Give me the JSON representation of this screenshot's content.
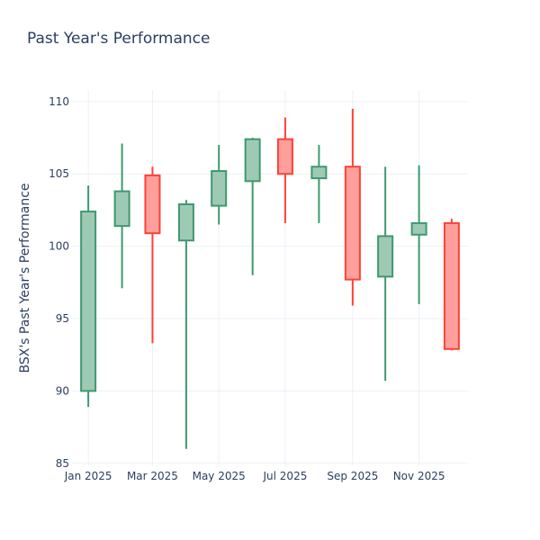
{
  "chart_data": {
    "type": "candlestick",
    "title": "Past Year's Performance",
    "xlabel": "",
    "ylabel": "BSX's Past Year's Performance",
    "ylim": [
      84.8,
      110.8
    ],
    "xlim": [
      "2024-12-17",
      "2025-12-16"
    ],
    "grid": true,
    "yticks": [
      85,
      90,
      95,
      100,
      105,
      110
    ],
    "xticks": [
      {
        "date": "2025-01-01",
        "label": "Jan 2025"
      },
      {
        "date": "2025-03-01",
        "label": "Mar 2025"
      },
      {
        "date": "2025-05-01",
        "label": "May 2025"
      },
      {
        "date": "2025-07-01",
        "label": "Jul 2025"
      },
      {
        "date": "2025-09-01",
        "label": "Sep 2025"
      },
      {
        "date": "2025-11-01",
        "label": "Nov 2025"
      }
    ],
    "colors": {
      "increasing": "#3d9970",
      "increasing_fill": "#9ecab4",
      "decreasing": "#ff4136",
      "decreasing_fill": "#ff9f9b",
      "grid": "#ebf0f8",
      "text": "#2a3f5f"
    },
    "candles": [
      {
        "date": "2025-01-01",
        "open": 90.0,
        "high": 104.2,
        "low": 88.9,
        "close": 102.4
      },
      {
        "date": "2025-02-01",
        "open": 101.4,
        "high": 107.1,
        "low": 97.1,
        "close": 103.8
      },
      {
        "date": "2025-03-01",
        "open": 104.9,
        "high": 105.5,
        "low": 93.3,
        "close": 100.9
      },
      {
        "date": "2025-04-01",
        "open": 100.4,
        "high": 103.2,
        "low": 86.0,
        "close": 102.9
      },
      {
        "date": "2025-05-01",
        "open": 102.8,
        "high": 107.0,
        "low": 101.5,
        "close": 105.2
      },
      {
        "date": "2025-06-01",
        "open": 104.5,
        "high": 107.5,
        "low": 98.0,
        "close": 107.4
      },
      {
        "date": "2025-07-01",
        "open": 107.4,
        "high": 108.9,
        "low": 101.6,
        "close": 105.0
      },
      {
        "date": "2025-08-01",
        "open": 104.7,
        "high": 107.0,
        "low": 101.6,
        "close": 105.5
      },
      {
        "date": "2025-09-01",
        "open": 105.5,
        "high": 109.5,
        "low": 95.9,
        "close": 97.7
      },
      {
        "date": "2025-10-01",
        "open": 97.9,
        "high": 105.5,
        "low": 90.7,
        "close": 100.7
      },
      {
        "date": "2025-11-01",
        "open": 100.8,
        "high": 105.6,
        "low": 96.0,
        "close": 101.6
      },
      {
        "date": "2025-12-01",
        "open": 101.6,
        "high": 101.9,
        "low": 92.8,
        "close": 92.9
      }
    ]
  }
}
